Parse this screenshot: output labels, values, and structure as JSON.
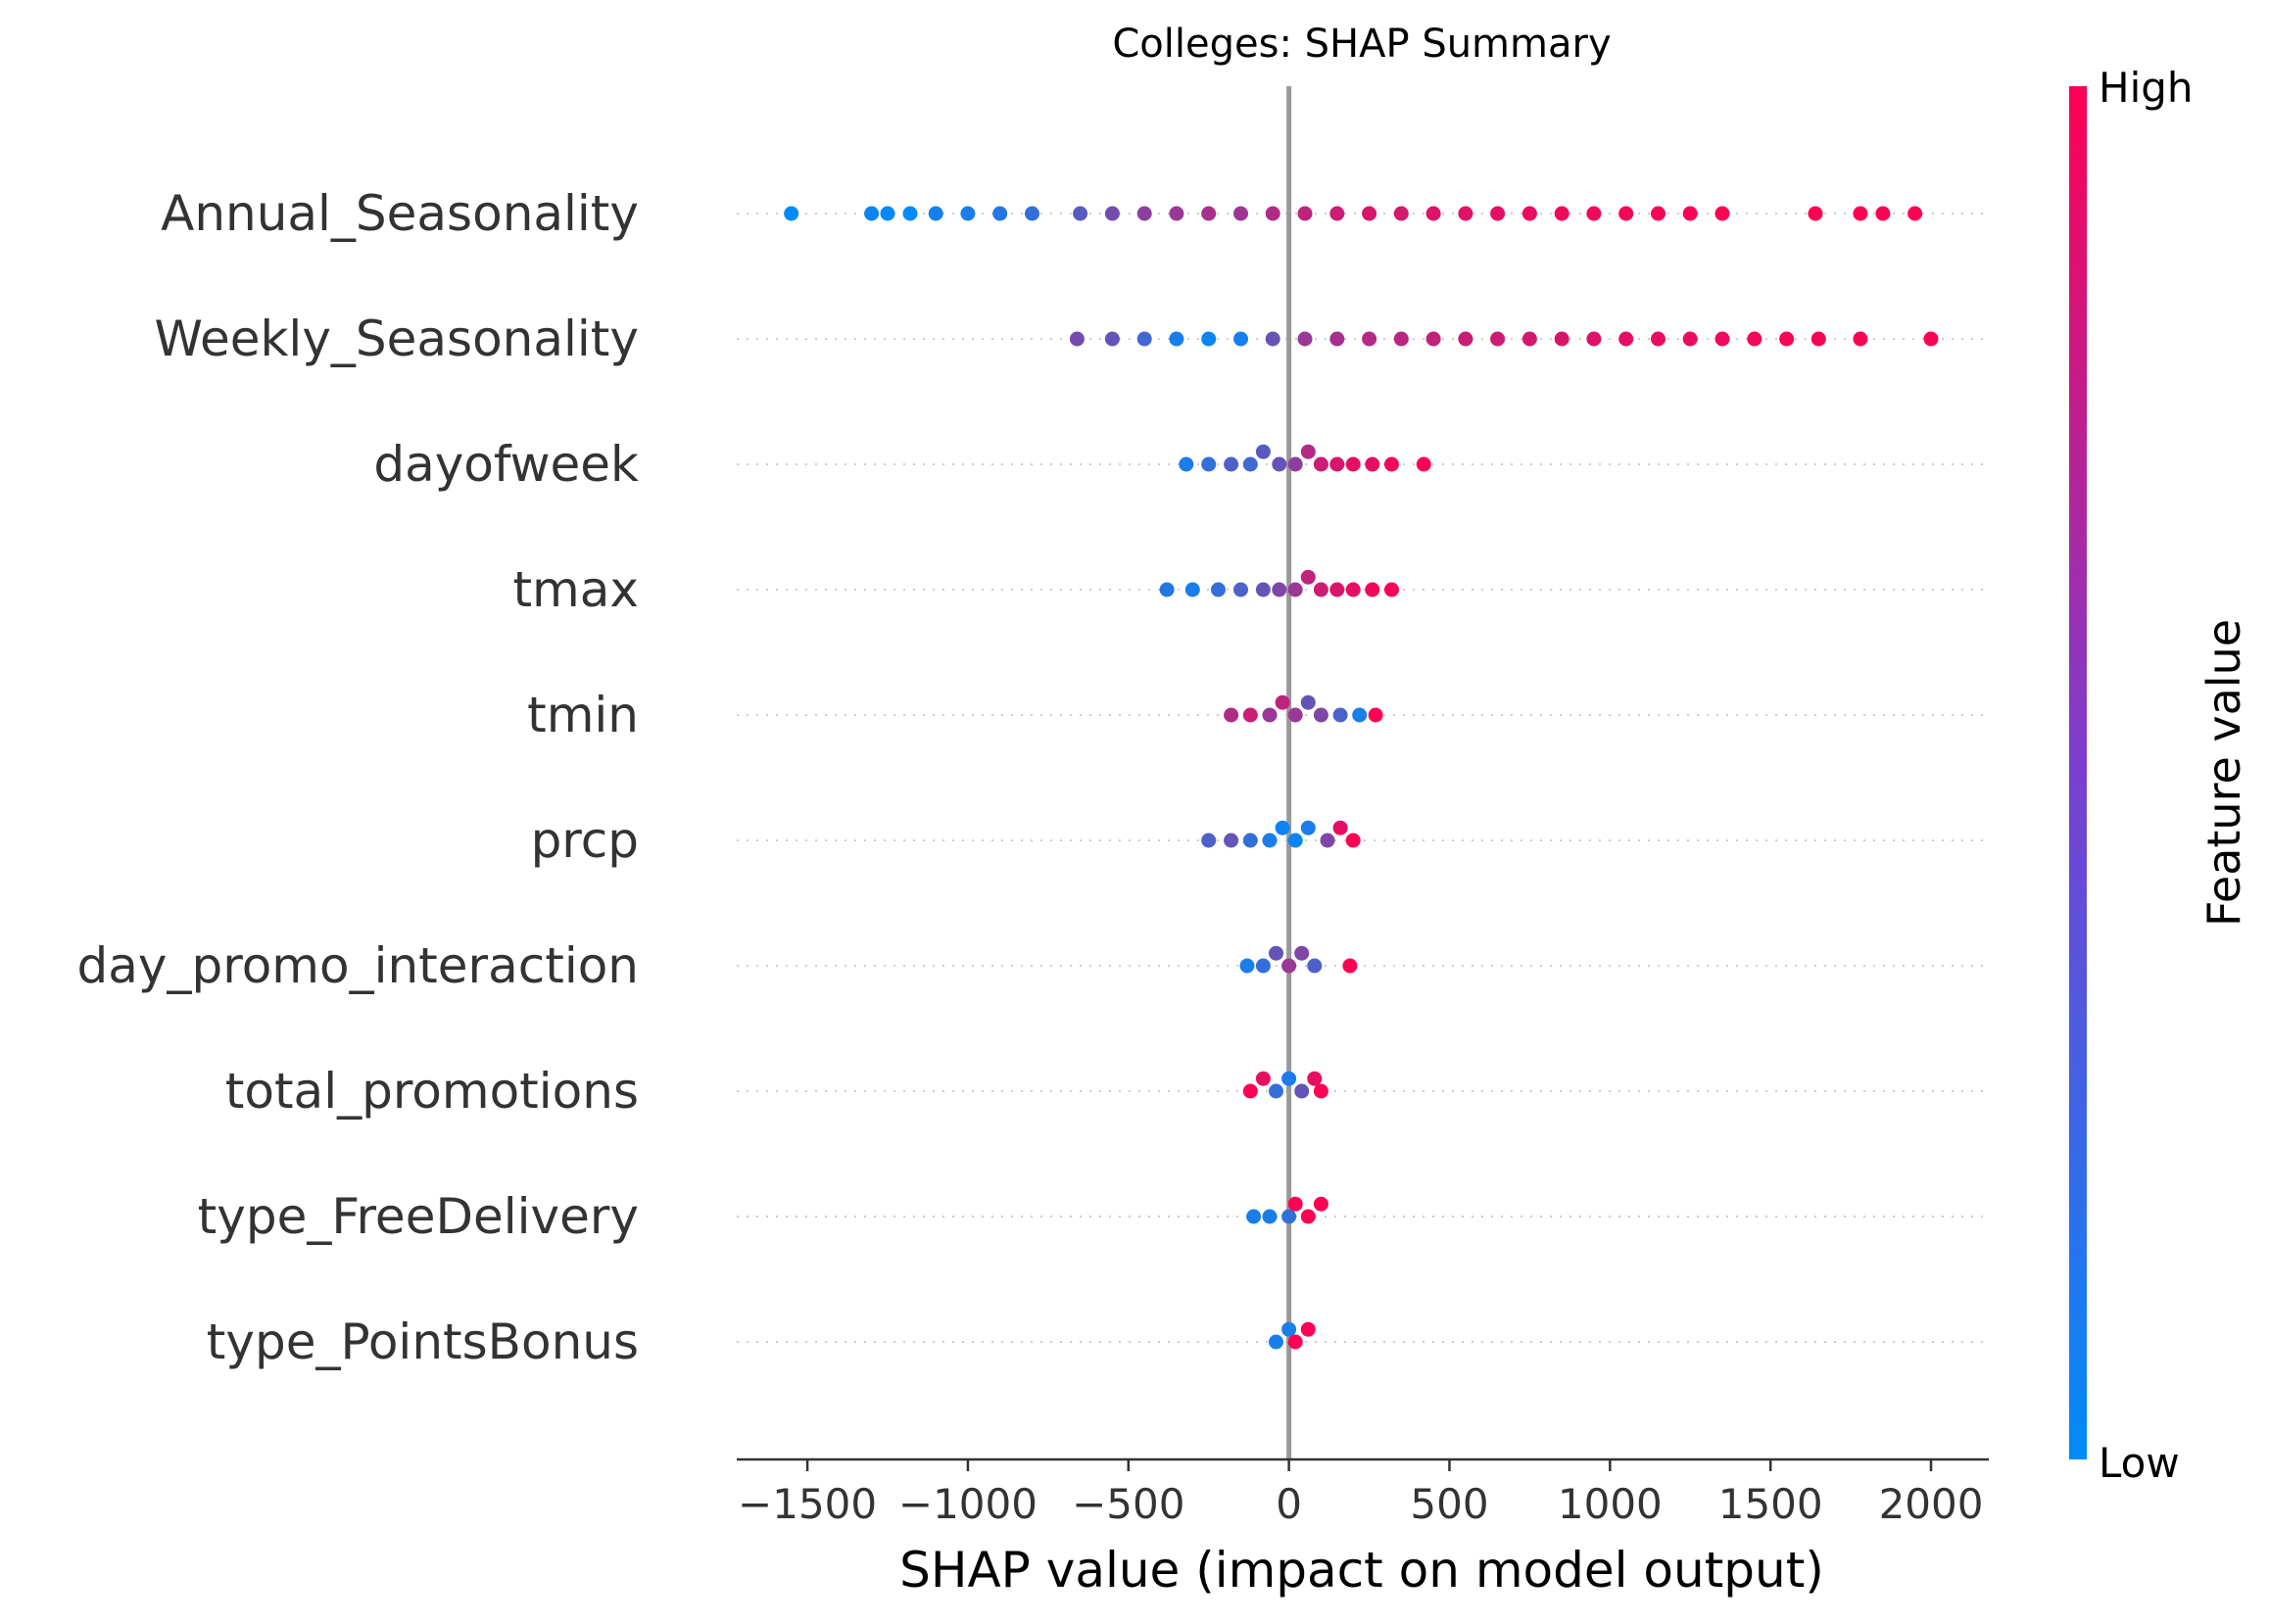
{
  "chart_data": {
    "type": "scatter",
    "subtype": "shap-beeswarm",
    "title": "Colleges: SHAP Summary",
    "xlabel": "SHAP value (impact on model output)",
    "xlim": [
      -1720,
      2180
    ],
    "xticks": [
      -1500,
      -1000,
      -500,
      0,
      500,
      1000,
      1500,
      2000
    ],
    "xtick_labels": [
      "−1500",
      "−1000",
      "−500",
      "0",
      "500",
      "1000",
      "1500",
      "2000"
    ],
    "zero_line": true,
    "colorbar": {
      "label": "Feature value",
      "high_label": "High",
      "low_label": "Low",
      "low_color": "#008bfb",
      "high_color": "#ff0052"
    },
    "features": [
      {
        "name": "Annual_Seasonality",
        "points": [
          [
            -1550,
            0.0
          ],
          [
            -1300,
            0.05
          ],
          [
            -1250,
            0.02
          ],
          [
            -1180,
            0.0
          ],
          [
            -1100,
            0.08
          ],
          [
            -1000,
            0.1
          ],
          [
            -900,
            0.15
          ],
          [
            -800,
            0.2
          ],
          [
            -650,
            0.35
          ],
          [
            -550,
            0.45
          ],
          [
            -450,
            0.55
          ],
          [
            -350,
            0.6
          ],
          [
            -250,
            0.65
          ],
          [
            -150,
            0.62
          ],
          [
            -50,
            0.7
          ],
          [
            50,
            0.75
          ],
          [
            150,
            0.8
          ],
          [
            250,
            0.85
          ],
          [
            350,
            0.82
          ],
          [
            450,
            0.86
          ],
          [
            550,
            0.88
          ],
          [
            650,
            0.9
          ],
          [
            750,
            0.92
          ],
          [
            850,
            0.94
          ],
          [
            950,
            0.95
          ],
          [
            1050,
            0.96
          ],
          [
            1150,
            0.97
          ],
          [
            1250,
            0.98
          ],
          [
            1350,
            0.99
          ],
          [
            1640,
            1.0
          ],
          [
            1780,
            1.0
          ],
          [
            1850,
            1.0
          ],
          [
            1950,
            1.0
          ]
        ]
      },
      {
        "name": "Weekly_Seasonality",
        "points": [
          [
            -660,
            0.45
          ],
          [
            -550,
            0.4
          ],
          [
            -450,
            0.25
          ],
          [
            -350,
            0.1
          ],
          [
            -250,
            0.05
          ],
          [
            -150,
            0.08
          ],
          [
            -50,
            0.4
          ],
          [
            50,
            0.6
          ],
          [
            150,
            0.65
          ],
          [
            250,
            0.7
          ],
          [
            350,
            0.72
          ],
          [
            450,
            0.75
          ],
          [
            550,
            0.78
          ],
          [
            650,
            0.8
          ],
          [
            750,
            0.82
          ],
          [
            850,
            0.85
          ],
          [
            950,
            0.87
          ],
          [
            1050,
            0.89
          ],
          [
            1150,
            0.9
          ],
          [
            1250,
            0.92
          ],
          [
            1350,
            0.93
          ],
          [
            1450,
            0.95
          ],
          [
            1550,
            0.96
          ],
          [
            1650,
            0.97
          ],
          [
            1780,
            0.98
          ],
          [
            2000,
            1.0
          ]
        ]
      },
      {
        "name": "dayofweek",
        "points": [
          [
            -320,
            0.1
          ],
          [
            -250,
            0.2
          ],
          [
            -180,
            0.3
          ],
          [
            -120,
            0.25
          ],
          [
            -80,
            0.35
          ],
          [
            -30,
            0.4
          ],
          [
            20,
            0.55
          ],
          [
            60,
            0.7
          ],
          [
            100,
            0.8
          ],
          [
            150,
            0.85
          ],
          [
            200,
            0.9
          ],
          [
            260,
            0.9
          ],
          [
            320,
            0.95
          ],
          [
            420,
            1.0
          ]
        ]
      },
      {
        "name": "tmax",
        "points": [
          [
            -380,
            0.15
          ],
          [
            -300,
            0.1
          ],
          [
            -220,
            0.2
          ],
          [
            -150,
            0.3
          ],
          [
            -80,
            0.4
          ],
          [
            -30,
            0.5
          ],
          [
            20,
            0.6
          ],
          [
            60,
            0.75
          ],
          [
            100,
            0.8
          ],
          [
            150,
            0.85
          ],
          [
            200,
            0.9
          ],
          [
            260,
            0.95
          ],
          [
            320,
            0.98
          ]
        ]
      },
      {
        "name": "tmin",
        "points": [
          [
            -180,
            0.7
          ],
          [
            -120,
            0.8
          ],
          [
            -60,
            0.6
          ],
          [
            -20,
            0.75
          ],
          [
            20,
            0.6
          ],
          [
            60,
            0.4
          ],
          [
            100,
            0.5
          ],
          [
            160,
            0.3
          ],
          [
            220,
            0.1
          ],
          [
            270,
            1.0
          ]
        ]
      },
      {
        "name": "prcp",
        "points": [
          [
            -250,
            0.3
          ],
          [
            -180,
            0.4
          ],
          [
            -120,
            0.2
          ],
          [
            -60,
            0.1
          ],
          [
            -20,
            0.05
          ],
          [
            20,
            0.05
          ],
          [
            60,
            0.1
          ],
          [
            120,
            0.5
          ],
          [
            160,
            0.9
          ],
          [
            200,
            1.0
          ]
        ]
      },
      {
        "name": "day_promo_interaction",
        "points": [
          [
            -130,
            0.1
          ],
          [
            -80,
            0.2
          ],
          [
            -40,
            0.4
          ],
          [
            0,
            0.6
          ],
          [
            40,
            0.5
          ],
          [
            80,
            0.3
          ],
          [
            190,
            1.0
          ]
        ]
      },
      {
        "name": "total_promotions",
        "points": [
          [
            -120,
            1.0
          ],
          [
            -80,
            0.9
          ],
          [
            -40,
            0.2
          ],
          [
            0,
            0.1
          ],
          [
            40,
            0.4
          ],
          [
            80,
            0.9
          ],
          [
            100,
            1.0
          ]
        ]
      },
      {
        "name": "type_FreeDelivery",
        "points": [
          [
            -110,
            0.1
          ],
          [
            -60,
            0.1
          ],
          [
            0,
            0.2
          ],
          [
            20,
            1.0
          ],
          [
            60,
            1.0
          ],
          [
            100,
            1.0
          ]
        ]
      },
      {
        "name": "type_PointsBonus",
        "points": [
          [
            -40,
            0.1
          ],
          [
            0,
            0.1
          ],
          [
            20,
            1.0
          ],
          [
            60,
            1.0
          ]
        ]
      }
    ]
  }
}
